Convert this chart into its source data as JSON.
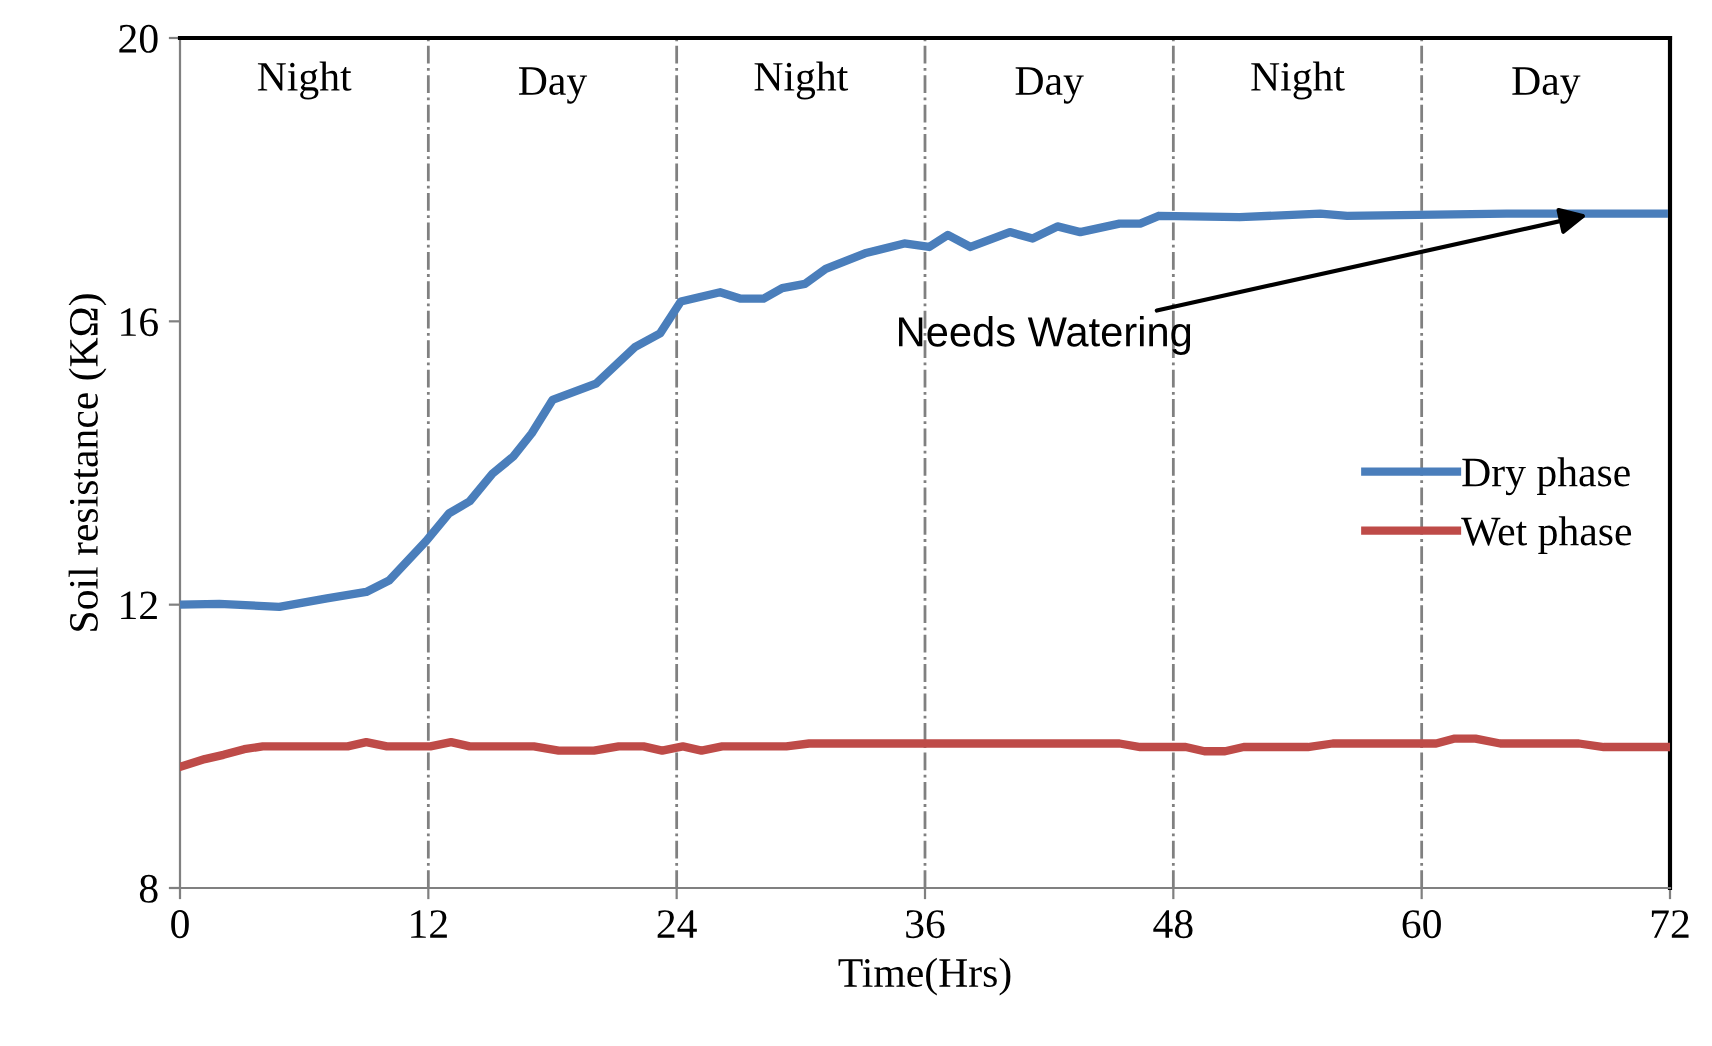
{
  "chart_data": {
    "type": "line",
    "xlabel": "Time(Hrs)",
    "ylabel": "Soil resistance (KΩ)",
    "xlim": [
      0,
      72
    ],
    "xticks": [
      0,
      12,
      24,
      36,
      48,
      60,
      72
    ],
    "ylim": [
      8,
      20
    ],
    "yticks": [
      8,
      12,
      16,
      20
    ],
    "grid": false,
    "legend": "right",
    "marker": "none",
    "line_style": "solid",
    "series": [
      {
        "name": "Dry phase",
        "color": "#4a7ebb",
        "x": [
          0,
          1.9,
          4.8,
          7.1,
          9.0,
          10.1,
          11.9,
          13.0,
          14.0,
          15.1,
          16.1,
          17.0,
          18.0,
          20.1,
          22.0,
          23.2,
          24.2,
          26.1,
          27.1,
          28.2,
          29.1,
          30.2,
          31.2,
          33.1,
          35.0,
          36.2,
          37.1,
          38.2,
          40.1,
          41.2,
          42.4,
          43.5,
          45.4,
          46.4,
          47.3,
          51.2,
          55.1,
          56.4,
          64.1,
          71.7
        ],
        "values": [
          12.0,
          12.01,
          11.97,
          12.09,
          12.18,
          12.34,
          12.9,
          13.29,
          13.46,
          13.85,
          14.09,
          14.42,
          14.89,
          15.12,
          15.64,
          15.83,
          16.28,
          16.41,
          16.32,
          16.32,
          16.47,
          16.53,
          16.74,
          16.96,
          17.1,
          17.05,
          17.22,
          17.05,
          17.26,
          17.17,
          17.34,
          17.26,
          17.38,
          17.38,
          17.49,
          17.47,
          17.52,
          17.49,
          17.52,
          17.52
        ]
      },
      {
        "name": "Wet phase",
        "color": "#be4b48",
        "x": [
          0,
          1.2,
          2.1,
          3.1,
          4.0,
          8.1,
          9.0,
          10.0,
          12.1,
          13.1,
          14.0,
          17.1,
          18.3,
          20.0,
          21.2,
          22.4,
          23.3,
          24.3,
          25.2,
          26.2,
          29.3,
          30.4,
          45.4,
          46.4,
          48.6,
          49.5,
          50.5,
          51.4,
          54.5,
          55.7,
          60.7,
          61.6,
          62.6,
          63.8,
          67.6,
          68.8,
          71.9
        ],
        "values": [
          9.71,
          9.82,
          9.88,
          9.96,
          10.0,
          10.0,
          10.06,
          10.0,
          10.0,
          10.06,
          10.0,
          10.0,
          9.94,
          9.94,
          10.0,
          10.0,
          9.94,
          10.0,
          9.94,
          10.0,
          10.0,
          10.04,
          10.04,
          9.99,
          9.99,
          9.93,
          9.93,
          9.99,
          9.99,
          10.04,
          10.04,
          10.11,
          10.11,
          10.04,
          10.04,
          9.99,
          9.99
        ]
      }
    ],
    "ref_lines": [
      {
        "axis": "x",
        "value": 12,
        "color": "#808080",
        "line_style": "dashdot"
      },
      {
        "axis": "x",
        "value": 24,
        "color": "#808080",
        "line_style": "dashdot"
      },
      {
        "axis": "x",
        "value": 36,
        "color": "#808080",
        "line_style": "dashdot"
      },
      {
        "axis": "x",
        "value": 48,
        "color": "#808080",
        "line_style": "dashdot"
      },
      {
        "axis": "x",
        "value": 60,
        "color": "#808080",
        "line_style": "dashdot"
      }
    ],
    "annotations": [
      "Night",
      "Day",
      "Night",
      "Day",
      "Night",
      "Day",
      {
        "text": "Needs Watering",
        "x": 68,
        "y": 17.5
      }
    ]
  }
}
